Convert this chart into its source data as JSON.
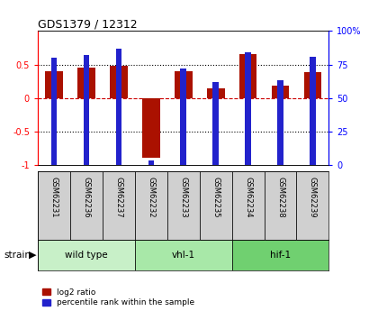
{
  "title": "GDS1379 / 12312",
  "samples": [
    "GSM62231",
    "GSM62236",
    "GSM62237",
    "GSM62232",
    "GSM62233",
    "GSM62235",
    "GSM62234",
    "GSM62238",
    "GSM62239"
  ],
  "log2_ratio": [
    0.4,
    0.45,
    0.48,
    -0.9,
    0.4,
    0.15,
    0.65,
    0.18,
    0.38
  ],
  "pct_rank": [
    80,
    82,
    87,
    3,
    72,
    62,
    84,
    63,
    81
  ],
  "groups": [
    {
      "label": "wild type",
      "start": 0,
      "end": 3,
      "color": "#c8f0c8"
    },
    {
      "label": "vhl-1",
      "start": 3,
      "end": 6,
      "color": "#a8e8a8"
    },
    {
      "label": "hif-1",
      "start": 6,
      "end": 9,
      "color": "#70d070"
    }
  ],
  "bar_color_red": "#aa1100",
  "bar_color_blue": "#2222cc",
  "ylim_left": [
    -1.0,
    1.0
  ],
  "ylim_right": [
    0,
    100
  ],
  "yticks_left": [
    -1.0,
    -0.5,
    0.0,
    0.5
  ],
  "ytick_labels_left": [
    "-1",
    "-0.5",
    "0",
    "0.5"
  ],
  "yticks_right": [
    0,
    25,
    50,
    75,
    100
  ],
  "ytick_labels_right": [
    "0",
    "25",
    "50",
    "75",
    "100%"
  ],
  "bg_color": "#ffffff",
  "plot_bg": "#ffffff",
  "label_bg": "#d0d0d0",
  "strain_label": "strain",
  "legend_items": [
    "log2 ratio",
    "percentile rank within the sample"
  ],
  "red_bar_width": 0.55,
  "blue_bar_width": 0.18
}
